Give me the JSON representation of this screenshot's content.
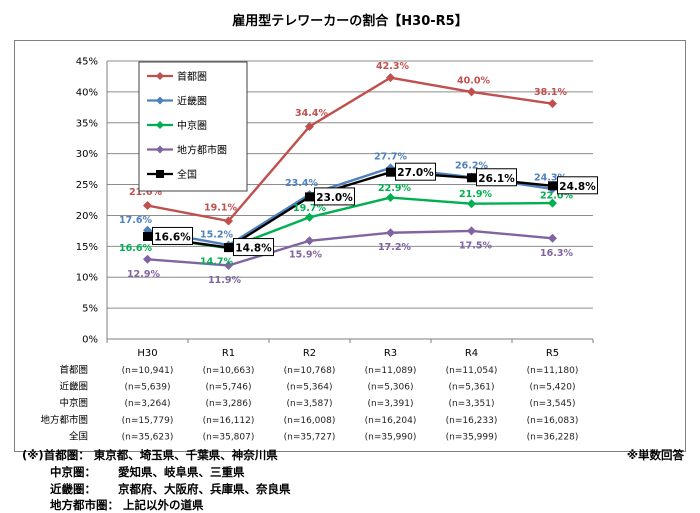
{
  "chart_data": {
    "type": "line",
    "title": "雇用型テレワーカーの割合【H30-R5】",
    "categories": [
      "H30",
      "R1",
      "R2",
      "R3",
      "R4",
      "R5"
    ],
    "ylim": [
      0,
      45
    ],
    "yticks": [
      "0%",
      "5%",
      "10%",
      "15%",
      "20%",
      "25%",
      "30%",
      "35%",
      "40%",
      "45%"
    ],
    "grid": true,
    "legend_position": "top-left",
    "series": [
      {
        "name": "首都圏",
        "color": "#c0504d",
        "marker": "diamond",
        "values": [
          21.6,
          19.1,
          34.4,
          42.3,
          40.0,
          38.1
        ],
        "labels": [
          "21.6%",
          "19.1%",
          "34.4%",
          "42.3%",
          "40.0%",
          "38.1%"
        ]
      },
      {
        "name": "近畿圏",
        "color": "#4f81bd",
        "marker": "diamond",
        "values": [
          17.6,
          15.2,
          23.4,
          27.7,
          26.2,
          24.3
        ],
        "labels": [
          "17.6%",
          "15.2%",
          "23.4%",
          "27.7%",
          "26.2%",
          "24.3%"
        ]
      },
      {
        "name": "中京圏",
        "color": "#00b050",
        "marker": "diamond",
        "values": [
          16.6,
          14.7,
          19.7,
          22.9,
          21.9,
          22.0
        ],
        "labels": [
          "16.6%",
          "14.7%",
          "19.7%",
          "22.9%",
          "21.9%",
          "22.0%"
        ]
      },
      {
        "name": "地方都市圏",
        "color": "#8064a2",
        "marker": "diamond",
        "values": [
          12.9,
          11.9,
          15.9,
          17.2,
          17.5,
          16.3
        ],
        "labels": [
          "12.9%",
          "11.9%",
          "15.9%",
          "17.2%",
          "17.5%",
          "16.3%"
        ]
      },
      {
        "name": "全国",
        "color": "#000000",
        "marker": "square",
        "values": [
          16.6,
          14.8,
          23.0,
          27.0,
          26.1,
          24.8
        ],
        "labels": [
          "16.6%",
          "14.8%",
          "23.0%",
          "27.0%",
          "26.1%",
          "24.8%"
        ]
      }
    ],
    "n_table": [
      {
        "label": "首都圏",
        "values": [
          "(n=10,941)",
          "(n=10,663)",
          "(n=10,768)",
          "(n=11,089)",
          "(n=11,054)",
          "(n=11,180)"
        ]
      },
      {
        "label": "近畿圏",
        "values": [
          "(n=5,639)",
          "(n=5,746)",
          "(n=5,364)",
          "(n=5,306)",
          "(n=5,361)",
          "(n=5,420)"
        ]
      },
      {
        "label": "中京圏",
        "values": [
          "(n=3,264)",
          "(n=3,286)",
          "(n=3,587)",
          "(n=3,391)",
          "(n=3,351)",
          "(n=3,545)"
        ]
      },
      {
        "label": "地方都市圏",
        "values": [
          "(n=15,779)",
          "(n=16,112)",
          "(n=16,008)",
          "(n=16,204)",
          "(n=16,233)",
          "(n=16,083)"
        ]
      },
      {
        "label": "全国",
        "values": [
          "(n=35,623)",
          "(n=35,807)",
          "(n=35,727)",
          "(n=35,990)",
          "(n=35,999)",
          "(n=36,228)"
        ]
      }
    ]
  },
  "notes": {
    "line1_head": "(※)首都圏：",
    "line1_body": "東京都、埼玉県、千葉県、神奈川県",
    "line2_head": "中京圏：",
    "line2_body": "愛知県、岐阜県、三重県",
    "line3_head": "近畿圏：",
    "line3_body": "京都府、大阪府、兵庫県、奈良県",
    "line4_head": "地方都市圏：",
    "line4_body": "上記以外の道県",
    "single_answer": "※単数回答"
  }
}
